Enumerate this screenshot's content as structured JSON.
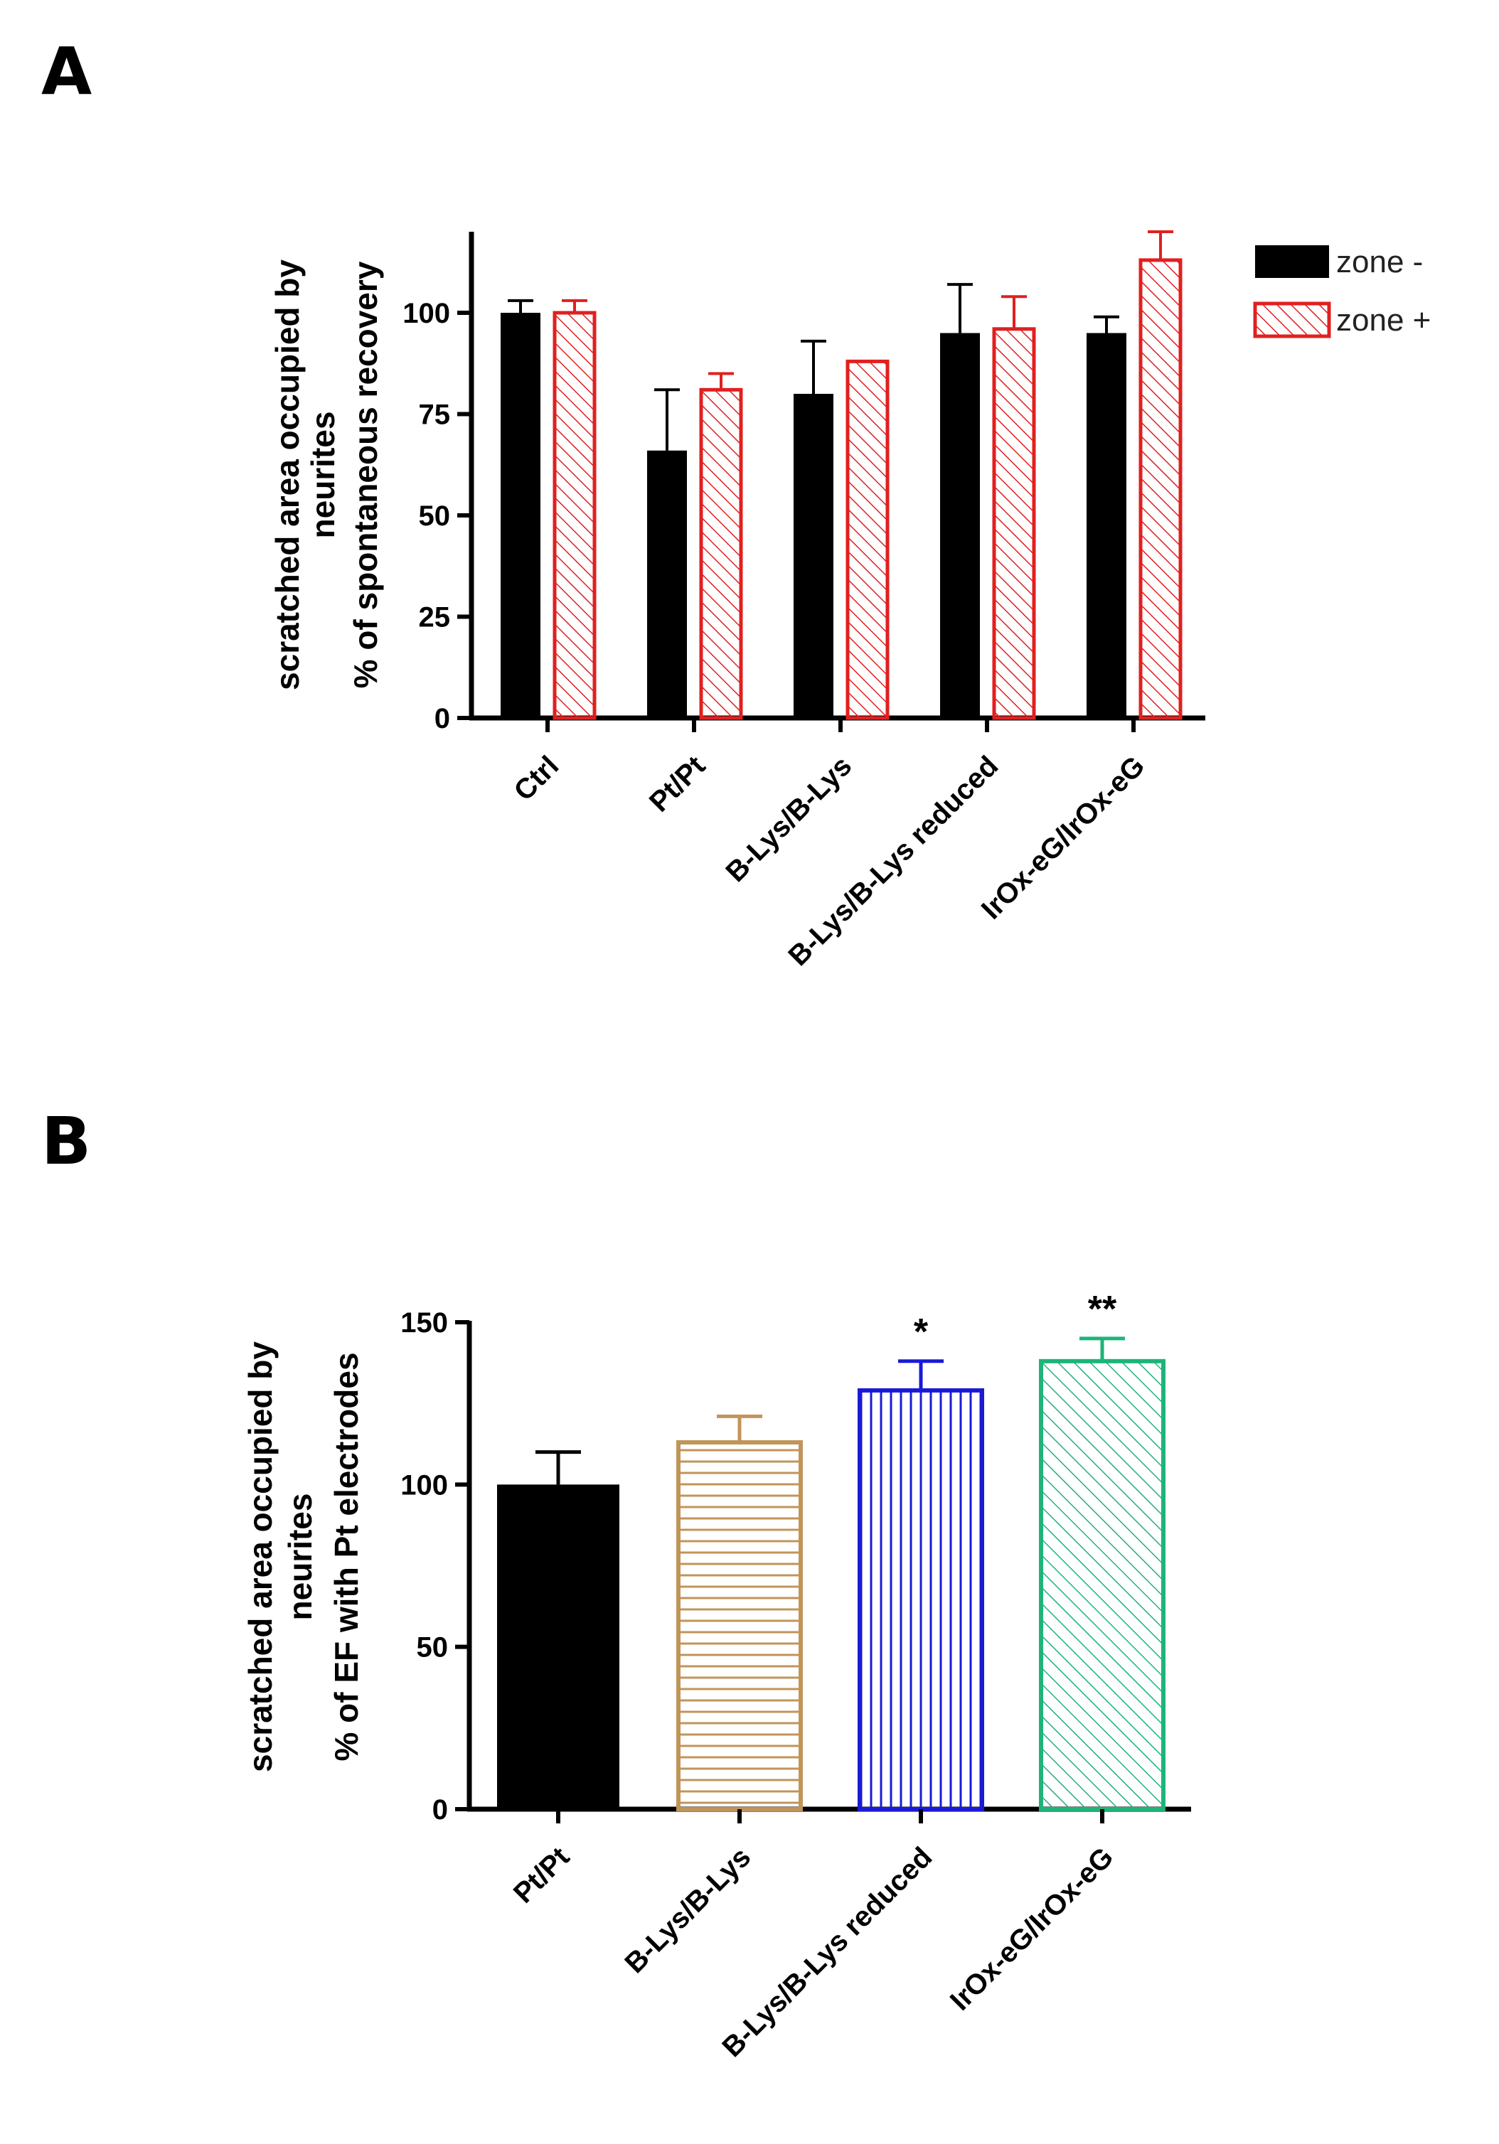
{
  "panels": {
    "a": "A",
    "b": "B"
  },
  "chart_data": [
    {
      "id": "chartA",
      "type": "bar",
      "categories": [
        "Ctrl",
        "Pt/Pt",
        "B-Lys/B-Lys",
        "B-Lys/B-Lys reduced",
        "IrOx-eG/IrOx-eG"
      ],
      "series": [
        {
          "name": "zone -",
          "color": "#000000",
          "fill": "solid",
          "values": [
            100,
            66,
            80,
            95,
            95
          ],
          "errors": [
            3,
            15,
            13,
            12,
            4
          ]
        },
        {
          "name": "zone +",
          "color": "#e02020",
          "fill": "hatch",
          "values": [
            100,
            81,
            88,
            96,
            113
          ],
          "errors": [
            3,
            4,
            0,
            8,
            7
          ]
        }
      ],
      "ylabel_lines": [
        "scratched area occupied by",
        "neurites",
        "% of spontaneous recovery"
      ],
      "yticks": [
        0,
        25,
        50,
        75,
        100
      ],
      "ylim": [
        0,
        120
      ],
      "legend_position": "top-right",
      "annotations": []
    },
    {
      "id": "chartB",
      "type": "bar",
      "categories": [
        "Pt/Pt",
        "B-Lys/B-Lys",
        "B-Lys/B-Lys reduced",
        "IrOx-eG/IrOx-eG"
      ],
      "series": [
        {
          "name": "EF",
          "values": [
            100,
            113,
            129,
            138
          ],
          "errors": [
            10,
            8,
            9,
            7
          ],
          "colors": [
            "#000000",
            "#c0955a",
            "#1a1ad6",
            "#1fb37a"
          ],
          "fills": [
            "solid",
            "horizontal",
            "vertical",
            "diagonal"
          ]
        }
      ],
      "ylabel_lines": [
        "scratched area occupied by",
        "neurites",
        "% of EF with Pt electrodes"
      ],
      "yticks": [
        0,
        50,
        100,
        150
      ],
      "ylim": [
        0,
        150
      ],
      "annotations": [
        "",
        "",
        "*",
        "**"
      ]
    }
  ]
}
